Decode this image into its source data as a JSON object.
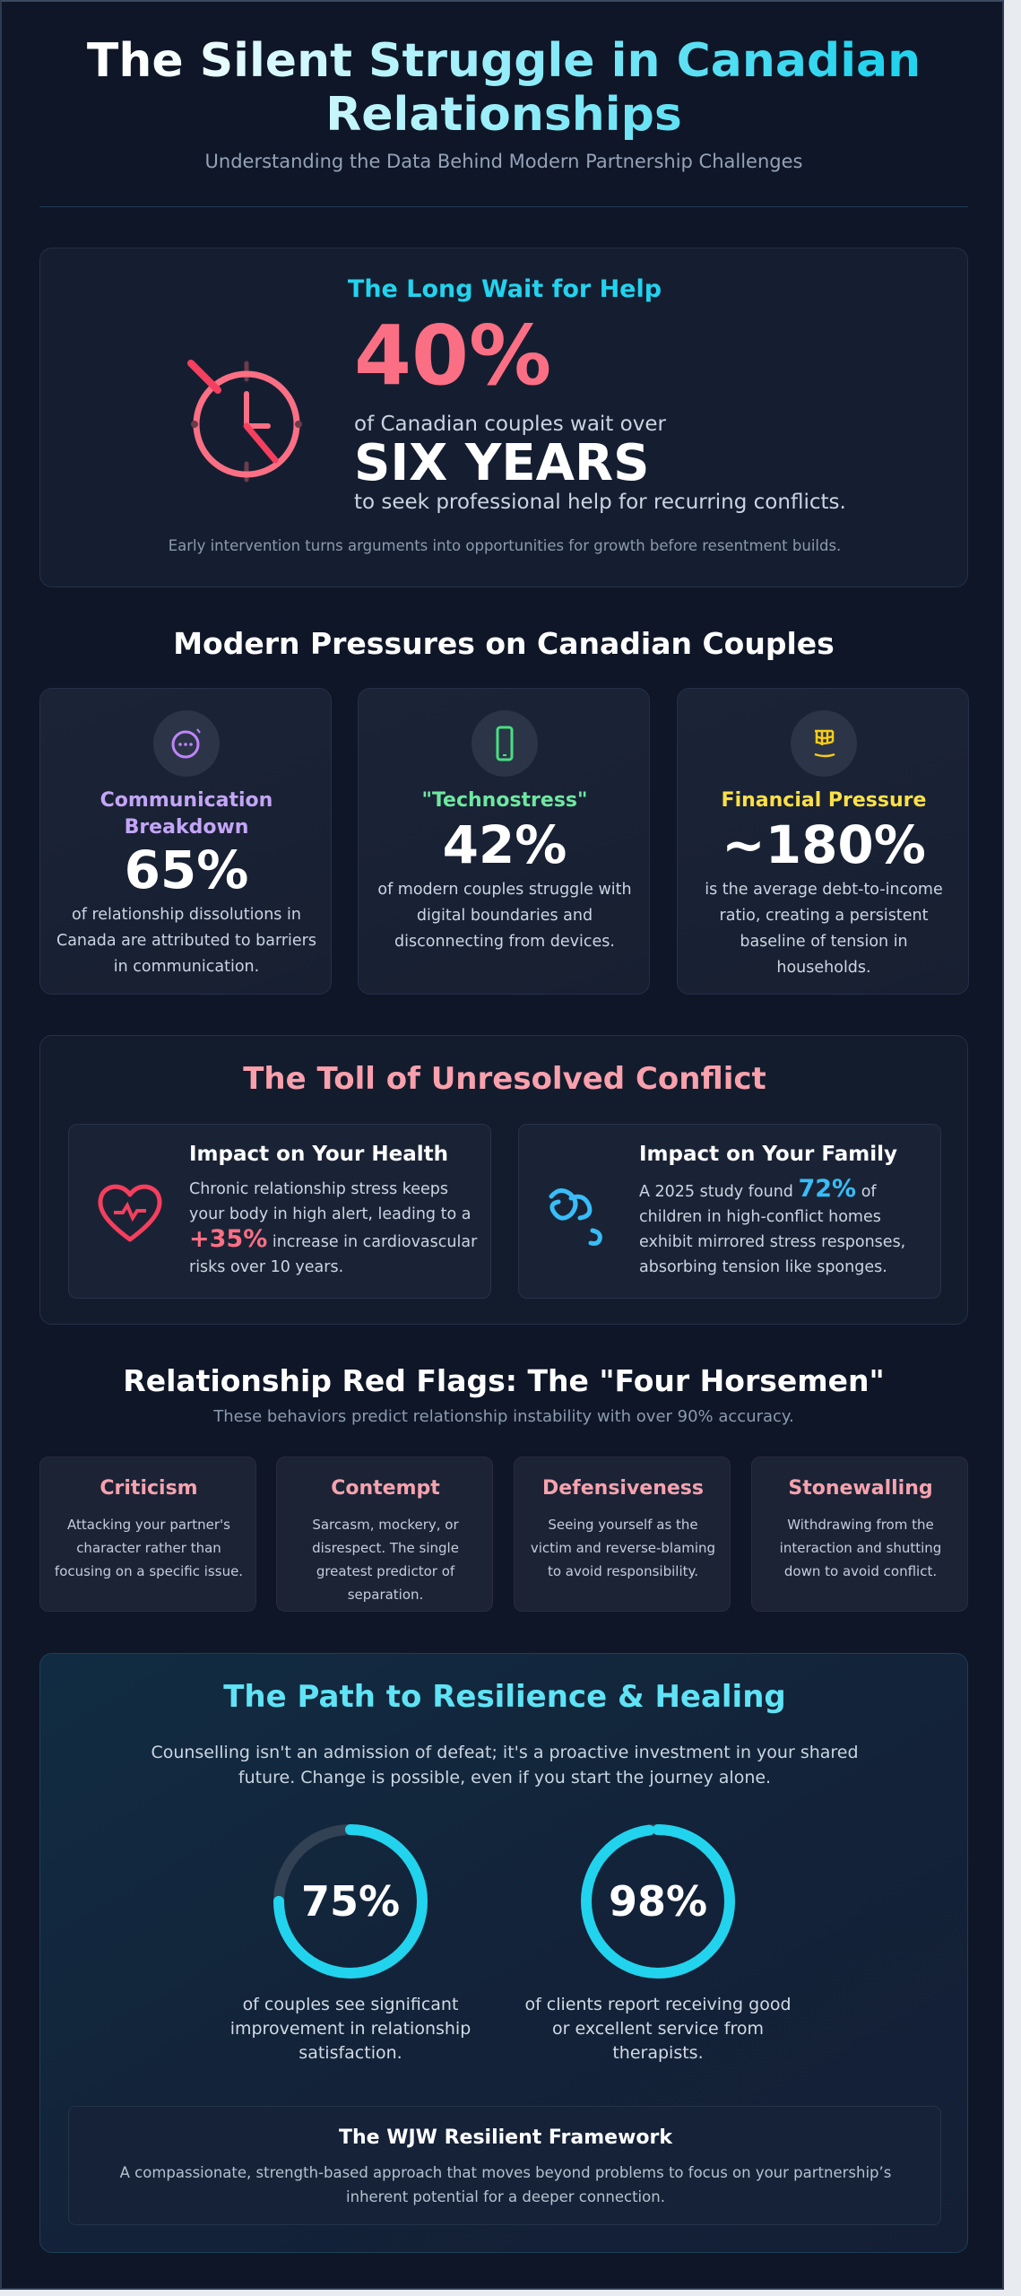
{
  "header": {
    "title": "The Silent Struggle in Canadian Relationships",
    "subtitle": "Understanding the Data Behind Modern Partnership Challenges"
  },
  "wait": {
    "title": "The Long Wait for Help",
    "icon": "clock-icon",
    "stat": "40%",
    "line1": "of Canadian couples wait over",
    "emphasis": "SIX YEARS",
    "line2": "to seek professional help for recurring conflicts.",
    "note": "Early intervention turns arguments into opportunities for growth before resentment builds."
  },
  "pressures": {
    "heading": "Modern Pressures on Canadian Couples",
    "cards": [
      {
        "icon": "chat-bubble-icon",
        "title": "Communication Breakdown",
        "stat": "65%",
        "desc": "of relationship dissolutions in Canada are attributed to barriers in communication.",
        "color": "#c4a5f7"
      },
      {
        "icon": "smartphone-icon",
        "title": "\"Technostress\"",
        "stat": "42%",
        "desc": "of modern couples struggle with digital boundaries and disconnecting from devices.",
        "color": "#6ee7a0"
      },
      {
        "icon": "money-icon",
        "title": "Financial Pressure",
        "stat": "~180%",
        "desc": "is the average debt-to-income ratio, creating a persistent baseline of tension in households.",
        "color": "#fde047"
      }
    ]
  },
  "toll": {
    "heading": "The Toll of Unresolved Conflict",
    "health": {
      "icon": "heart-pulse-icon",
      "title": "Impact on Your Health",
      "before": "Chronic relationship stress keeps your body in high alert, leading to a",
      "highlight": "+35%",
      "after": "increase in cardiovascular risks over 10 years."
    },
    "family": {
      "icon": "family-icon",
      "title": "Impact on Your Family",
      "before": "A 2025 study found",
      "highlight": "72%",
      "after": "of children in high-conflict homes exhibit mirrored stress responses, absorbing tension like sponges."
    }
  },
  "flags": {
    "heading": "Relationship Red Flags: The \"Four Horsemen\"",
    "subtitle": "These behaviors predict relationship instability with over 90% accuracy.",
    "cards": [
      {
        "title": "Criticism",
        "desc": "Attacking your partner's character rather than focusing on a specific issue."
      },
      {
        "title": "Contempt",
        "desc": "Sarcasm, mockery, or disrespect. The single greatest predictor of separation."
      },
      {
        "title": "Defensiveness",
        "desc": "Seeing yourself as the victim and reverse-blaming to avoid responsibility."
      },
      {
        "title": "Stonewalling",
        "desc": "Withdrawing from the interaction and shutting down to avoid conflict."
      }
    ]
  },
  "healing": {
    "heading": "The Path to Resilience & Healing",
    "intro": "Counselling isn't an admission of defeat; it's a proactive investment in your shared future. Change is possible, even if you start the journey alone.",
    "rings": [
      {
        "label": "75%",
        "value": 75,
        "desc": "of couples see significant improvement in relationship satisfaction."
      },
      {
        "label": "98%",
        "value": 98,
        "desc": "of clients report receiving good or excellent service from therapists."
      }
    ],
    "framework": {
      "title": "The WJW Resilient Framework",
      "desc": "A compassionate, strength-based approach that moves beyond problems to focus on your partnership’s inherent potential for a deeper connection."
    }
  },
  "colors": {
    "accent": "#22d3ee",
    "alert": "#fb6f84",
    "ring": "#22d3ee",
    "ring_track": "#334155"
  }
}
